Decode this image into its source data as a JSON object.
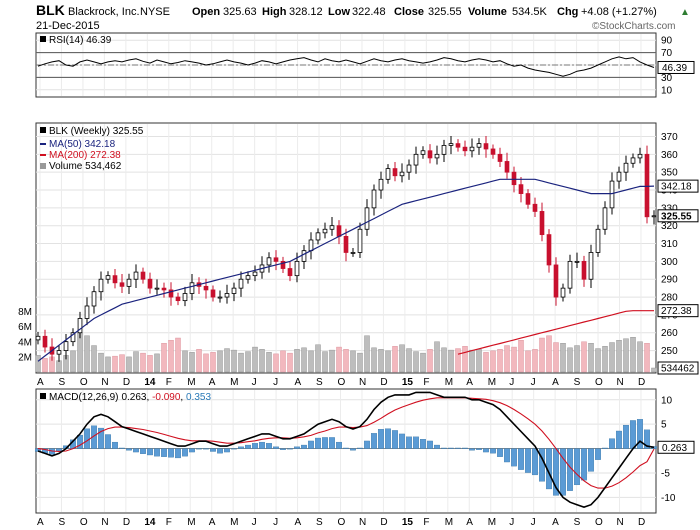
{
  "header": {
    "symbol": "BLK",
    "company": "Blackrock, Inc.",
    "exchange": "NYSE",
    "date": "21-Dec-2015",
    "open_label": "Open",
    "open": "325.63",
    "high_label": "High",
    "high": "328.12",
    "low_label": "Low",
    "low": "322.48",
    "close_label": "Close",
    "close": "325.55",
    "volume_label": "Volume",
    "volume": "534.5K",
    "chg_label": "Chg",
    "chg": "+4.08 (+1.27%)",
    "chg_arrow": "▲",
    "watermark": "©StockCharts.com"
  },
  "colors": {
    "up": "#000000",
    "down": "#c8102e",
    "ma50": "#1a237e",
    "ma200": "#d01020",
    "volume_up": "#bdbdbd",
    "volume_down": "#f2b8be",
    "macd_line": "#000000",
    "signal_line": "#d01020",
    "histogram": "#5b9bd5",
    "rsi_line": "#000000"
  },
  "x_axis": {
    "labels": [
      "A",
      "S",
      "O",
      "N",
      "D",
      "14",
      "F",
      "M",
      "A",
      "M",
      "J",
      "J",
      "A",
      "S",
      "O",
      "N",
      "D",
      "15",
      "F",
      "M",
      "A",
      "M",
      "J",
      "J",
      "A",
      "S",
      "O",
      "N",
      "D"
    ],
    "bold": [
      "14",
      "15"
    ]
  },
  "chart_data": [
    {
      "type": "line",
      "panel": "rsi",
      "legend": "RSI(14) 46.39",
      "y_ticks": [
        90,
        70,
        50,
        30,
        10
      ],
      "ylim": [
        0,
        100
      ],
      "levels": [
        70,
        30
      ],
      "last_value_label": "46.39",
      "values": [
        48,
        52,
        55,
        57,
        50,
        48,
        55,
        58,
        55,
        52,
        55,
        57,
        55,
        58,
        60,
        56,
        53,
        58,
        55,
        52,
        54,
        57,
        55,
        53,
        50,
        52,
        55,
        58,
        55,
        53,
        50,
        53,
        57,
        55,
        52,
        55,
        58,
        60,
        62,
        58,
        55,
        60,
        57,
        55,
        58,
        55,
        52,
        56,
        60,
        57,
        55,
        58,
        60,
        57,
        55,
        53,
        55,
        58,
        62,
        60,
        57,
        55,
        58,
        60,
        58,
        55,
        57,
        52,
        48,
        50,
        45,
        42,
        40,
        38,
        35,
        32,
        35,
        40,
        42,
        45,
        50,
        55,
        60,
        63,
        60,
        62,
        55,
        50,
        46
      ]
    },
    {
      "type": "candlestick",
      "panel": "price",
      "legend": {
        "title": "BLK (Weekly) 325.55",
        "ma50": "MA(50) 342.18",
        "ma200": "MA(200) 272.38",
        "volume": "Volume 534,462"
      },
      "y_ticks": [
        370,
        360,
        350,
        340,
        330,
        320,
        310,
        300,
        290,
        280,
        270,
        260,
        250
      ],
      "ylim": [
        238,
        377
      ],
      "price_tags": [
        "342.18",
        "325.55",
        "272.38",
        "534462"
      ],
      "closes": [
        258,
        252,
        248,
        250,
        255,
        260,
        268,
        275,
        283,
        290,
        292,
        288,
        286,
        290,
        294,
        290,
        285,
        285,
        284,
        280,
        278,
        282,
        288,
        286,
        284,
        280,
        280,
        282,
        285,
        290,
        292,
        294,
        298,
        302,
        300,
        296,
        292,
        300,
        306,
        312,
        316,
        318,
        320,
        314,
        305,
        305,
        318,
        330,
        340,
        346,
        352,
        348,
        350,
        354,
        360,
        362,
        358,
        360,
        365,
        366,
        364,
        362,
        364,
        366,
        363,
        360,
        356,
        350,
        343,
        338,
        332,
        328,
        315,
        298,
        280,
        285,
        300,
        300,
        290,
        305,
        318,
        330,
        345,
        350,
        355,
        358,
        360,
        325,
        325.55
      ],
      "ma50": [
        244,
        247,
        250,
        253,
        256,
        259,
        262,
        265,
        268,
        270,
        272,
        274,
        276,
        277,
        278,
        279,
        280,
        281,
        282,
        283,
        284,
        285,
        286,
        287,
        288,
        289,
        290,
        291,
        292,
        293,
        294,
        295,
        296,
        297,
        298,
        299,
        300,
        302,
        304,
        306,
        308,
        310,
        312,
        314,
        316,
        318,
        320,
        322,
        324,
        326,
        328,
        330,
        332,
        333,
        334,
        335,
        336,
        337,
        338,
        339,
        340,
        341,
        342,
        343,
        344,
        345,
        346,
        346,
        346,
        346,
        346,
        346,
        345,
        344,
        343,
        342,
        341,
        340,
        339,
        338,
        338,
        338,
        338,
        339,
        340,
        341,
        342,
        342,
        342.18
      ],
      "ma200_start_index": 60,
      "ma200": [
        248,
        249,
        250,
        251,
        252,
        253,
        254,
        255,
        256,
        257,
        258,
        259,
        260,
        261,
        262,
        263,
        264,
        265,
        266,
        267,
        268,
        269,
        270,
        271,
        272,
        272.38,
        272.38,
        272.38,
        272.38
      ]
    },
    {
      "type": "bar",
      "panel": "volume",
      "y_ticks": [
        "8M",
        "6M",
        "4M",
        "2M"
      ],
      "ylim": [
        0,
        9
      ],
      "values_millions": [
        2.2,
        1.8,
        2.0,
        1.5,
        2.2,
        2.8,
        5.2,
        4.8,
        3.5,
        2.5,
        2.0,
        2.1,
        2.3,
        2.0,
        2.7,
        2.5,
        2.2,
        2.4,
        3.8,
        4.2,
        4.5,
        2.8,
        2.6,
        3.0,
        2.4,
        2.6,
        2.8,
        3.1,
        2.9,
        2.5,
        2.7,
        3.3,
        3.0,
        2.6,
        2.4,
        2.8,
        2.5,
        3.0,
        3.2,
        2.8,
        3.6,
        2.7,
        2.9,
        3.3,
        3.0,
        2.8,
        2.5,
        4.8,
        3.2,
        3.0,
        2.8,
        3.4,
        3.6,
        3.1,
        2.7,
        2.5,
        3.0,
        4.0,
        3.2,
        2.9,
        3.1,
        3.4,
        2.9,
        3.0,
        2.6,
        2.8,
        3.0,
        3.5,
        3.3,
        4.2,
        2.8,
        3.0,
        4.5,
        4.8,
        3.9,
        3.8,
        3.2,
        3.5,
        4.0,
        3.8,
        3.1,
        3.4,
        3.9,
        4.2,
        4.4,
        4.6,
        4.0,
        3.8,
        0.53
      ]
    },
    {
      "type": "line",
      "panel": "macd",
      "legend": {
        "macd": "MACD(12,26,9)",
        "macd_value": "0.263",
        "signal_value": "-0.090",
        "hist_value": "0.353"
      },
      "y_ticks": [
        10,
        5,
        0,
        -5,
        -10
      ],
      "ylim": [
        -13,
        12
      ],
      "last_value_label": "0.263",
      "macd": [
        -0.5,
        -1,
        -1.5,
        -1,
        0,
        1.5,
        3,
        5,
        6.5,
        7,
        6.5,
        5.5,
        4.5,
        4,
        3.5,
        3,
        2.5,
        2,
        1.5,
        1,
        0.5,
        0.5,
        1,
        1.5,
        1.5,
        1,
        0.5,
        0.5,
        1,
        1.5,
        2,
        2.5,
        3,
        3,
        2.5,
        2,
        2,
        2.5,
        3,
        4,
        5,
        5.5,
        6,
        5.5,
        4.5,
        4,
        4.5,
        6,
        8,
        9.5,
        10.5,
        11,
        11,
        11,
        11.5,
        11.5,
        11.5,
        11,
        10.5,
        10.5,
        10.5,
        10.5,
        10,
        10,
        9.5,
        9,
        8,
        6.5,
        5,
        3.5,
        2,
        0.5,
        -2,
        -5,
        -8,
        -10,
        -11,
        -11.5,
        -12,
        -11.5,
        -10,
        -8,
        -6,
        -4,
        -2,
        0,
        1.5,
        0.5,
        0.263
      ],
      "signal": [
        0,
        -0.2,
        -0.5,
        -0.6,
        -0.5,
        0,
        0.7,
        1.6,
        2.6,
        3.5,
        4.1,
        4.4,
        4.4,
        4.3,
        4.1,
        3.9,
        3.6,
        3.3,
        2.9,
        2.5,
        2.1,
        1.8,
        1.6,
        1.6,
        1.6,
        1.5,
        1.3,
        1.1,
        1.1,
        1.2,
        1.4,
        1.6,
        1.9,
        2.1,
        2.2,
        2.2,
        2.1,
        2.2,
        2.4,
        2.7,
        3.2,
        3.6,
        4.1,
        4.4,
        4.4,
        4.3,
        4.4,
        4.7,
        5.4,
        6.2,
        7.1,
        7.9,
        8.5,
        9.0,
        9.5,
        9.9,
        10.2,
        10.4,
        10.4,
        10.4,
        10.4,
        10.4,
        10.3,
        10.2,
        10.1,
        9.8,
        9.4,
        8.8,
        8.0,
        7.1,
        6.1,
        5.0,
        3.6,
        1.9,
        0,
        -2,
        -3.8,
        -5.3,
        -6.6,
        -7.6,
        -8.1,
        -8.1,
        -7.7,
        -7,
        -6,
        -4.8,
        -3.5,
        -2.7,
        -0.09
      ]
    }
  ]
}
